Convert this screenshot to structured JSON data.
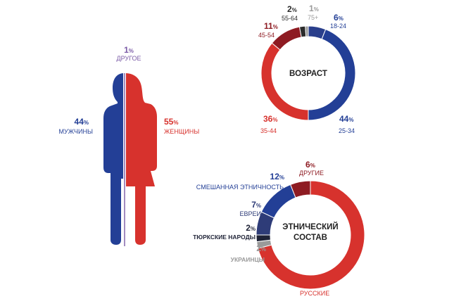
{
  "gender": {
    "chart_data": {
      "type": "pie",
      "categories": [
        "МУЖЧИНЫ",
        "ЖЕНЩИНЫ",
        "ДРУГОЕ"
      ],
      "values": [
        44,
        55,
        1
      ],
      "unit": "%",
      "colors": [
        "#233f96",
        "#d7322d",
        "#7a5aa6"
      ]
    },
    "men": {
      "value": "44",
      "unit": "%",
      "label": "МУЖЧИНЫ"
    },
    "women": {
      "value": "55",
      "unit": "%",
      "label": "ЖЕНЩИНЫ"
    },
    "other": {
      "value": "1",
      "unit": "%",
      "label": "ДРУГОЕ"
    }
  },
  "age": {
    "center_label": "ВОЗРАСТ",
    "chart_data": {
      "type": "pie",
      "categories": [
        "18-24",
        "25-34",
        "35-44",
        "45-54",
        "55-64",
        "75+"
      ],
      "values": [
        6,
        44,
        36,
        11,
        2,
        1
      ],
      "unit": "%",
      "colors": [
        "#2a3f8c",
        "#233f96",
        "#d7322d",
        "#8e1b22",
        "#2b2b2b",
        "#9a9a9a"
      ]
    },
    "labels": [
      {
        "value": "6",
        "unit": "%",
        "label": "18-24"
      },
      {
        "value": "44",
        "unit": "%",
        "label": "25-34"
      },
      {
        "value": "36",
        "unit": "%",
        "label": "35-44"
      },
      {
        "value": "11",
        "unit": "%",
        "label": "45-54"
      },
      {
        "value": "2",
        "unit": "%",
        "label": "55-64"
      },
      {
        "value": "1",
        "unit": "%",
        "label": "75+"
      }
    ]
  },
  "ethnicity": {
    "center_label_1": "ЭТНИЧЕСКИЙ",
    "center_label_2": "СОСТАВ",
    "chart_data": {
      "type": "pie",
      "categories": [
        "РУССКИЕ",
        "УКРАИНЦЫ",
        "ТЮРКСКИЕ НАРОДЫ",
        "ЕВРЕИ",
        "СМЕШАННАЯ ЭТНИЧНОСТЬ",
        "ДРУГИЕ"
      ],
      "values": [
        71,
        2,
        2,
        7,
        12,
        6
      ],
      "unit": "%",
      "colors": [
        "#d7322d",
        "#9a9a9a",
        "#1e2236",
        "#2e3c78",
        "#233f96",
        "#8e1b22"
      ]
    },
    "labels": [
      {
        "value": "71",
        "unit": "%",
        "label": "РУССКИЕ"
      },
      {
        "value": "2",
        "unit": "%",
        "label": "УКРАИНЦЫ"
      },
      {
        "value": "2",
        "unit": "%",
        "label": "ТЮРКСКИЕ НАРОДЫ"
      },
      {
        "value": "7",
        "unit": "%",
        "label": "ЕВРЕИ"
      },
      {
        "value": "12",
        "unit": "%",
        "label": "СМЕШАННАЯ ЭТНИЧНОСТЬ"
      },
      {
        "value": "6",
        "unit": "%",
        "label": "ДРУГИЕ"
      }
    ]
  }
}
